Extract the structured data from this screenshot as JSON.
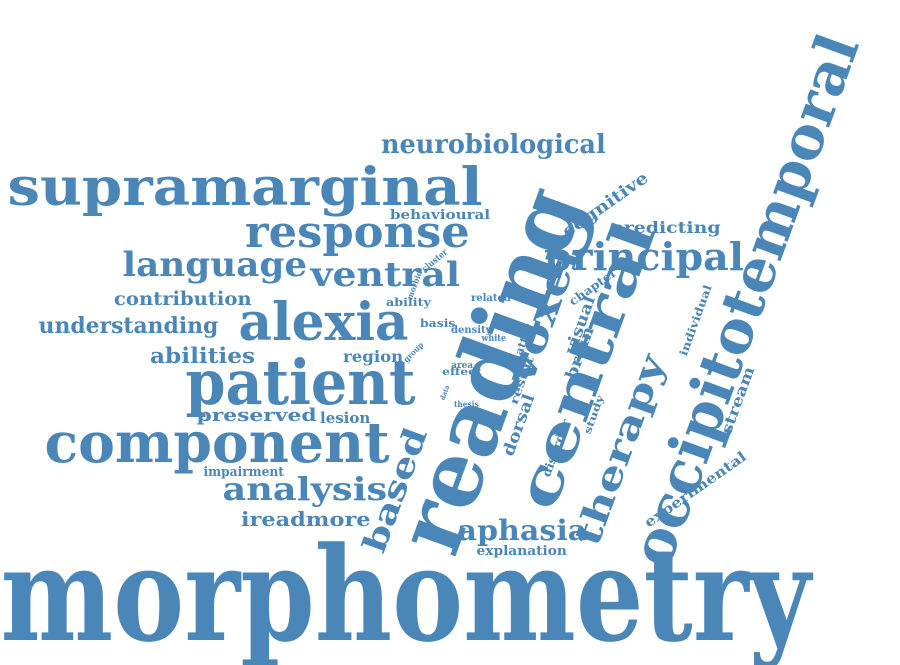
{
  "cloud": {
    "color": "#4a86b8",
    "words": {
      "morphometry": "morphometry",
      "occipitotemporal": "occipitotemporal",
      "reading": "reading",
      "central": "central",
      "supramarginal": "supramarginal",
      "patient": "patient",
      "component": "component",
      "alexia": "alexia",
      "response": "response",
      "voxel": "voxel",
      "principal": "principal",
      "ventral": "ventral",
      "language": "language",
      "therapy": "therapy",
      "analysis": "analysis",
      "aphasia": "aphasia",
      "neurobiological": "neurobiological",
      "based": "based",
      "understanding": "understanding",
      "abilities": "abilities",
      "contribution": "contribution",
      "ireadmore": "ireadmore",
      "preserved": "preserved",
      "lesion": "lesion",
      "region": "region",
      "cognitive": "cognitive",
      "predicting": "predicting",
      "dorsal": "dorsal",
      "brain": "brain",
      "visual": "visual",
      "stream": "stream",
      "experimental": "experimental",
      "explanation": "explanation",
      "impairment": "impairment",
      "behavioural": "behavioural",
      "chapter": "chapter",
      "individual": "individual",
      "disorder": "disorder",
      "study": "study",
      "result": "result",
      "ability": "ability",
      "basis": "basis",
      "density": "density",
      "related": "related",
      "effect": "effect",
      "area": "area",
      "white": "white",
      "matter": "matter",
      "cluster": "cluster",
      "morbid": "morbid",
      "group": "group",
      "thesis": "thesis",
      "data": "data"
    }
  }
}
